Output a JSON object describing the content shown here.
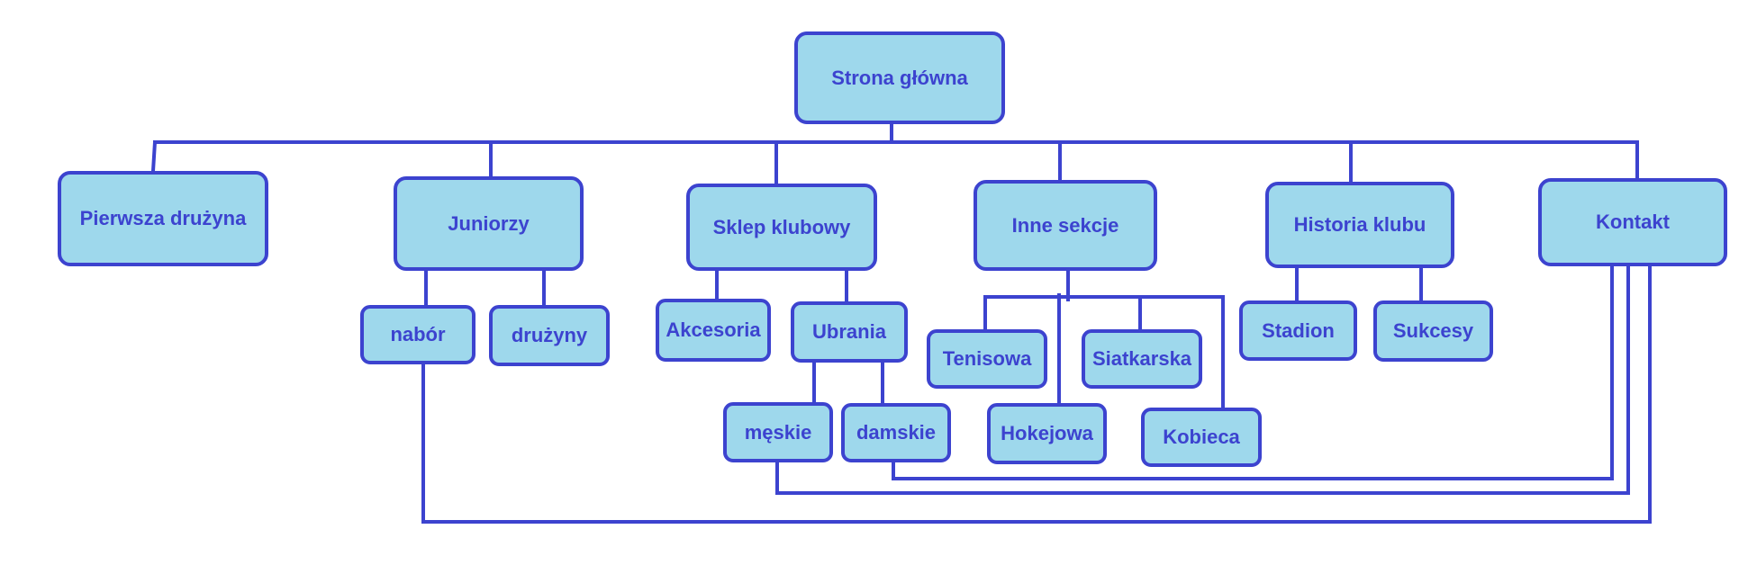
{
  "colors": {
    "line": "#3c43cf",
    "fill": "#9ed8ec",
    "text": "#3c43cf"
  },
  "nodes": {
    "root": "Strona główna",
    "pierwsza": "Pierwsza drużyna",
    "juniorzy": "Juniorzy",
    "sklep": "Sklep klubowy",
    "inne": "Inne sekcje",
    "historia": "Historia klubu",
    "kontakt": "Kontakt",
    "nabor": "nabór",
    "druzyny": "drużyny",
    "akcesoria": "Akcesoria",
    "ubrania": "Ubrania",
    "meskie": "męskie",
    "damskie": "damskie",
    "tenisowa": "Tenisowa",
    "siatkarska": "Siatkarska",
    "hokejowa": "Hokejowa",
    "kobieca": "Kobieca",
    "stadion": "Stadion",
    "sukcesy": "Sukcesy"
  },
  "edges": [
    [
      "root",
      "pierwsza"
    ],
    [
      "root",
      "juniorzy"
    ],
    [
      "root",
      "sklep"
    ],
    [
      "root",
      "inne"
    ],
    [
      "root",
      "historia"
    ],
    [
      "root",
      "kontakt"
    ],
    [
      "juniorzy",
      "nabor"
    ],
    [
      "juniorzy",
      "druzyny"
    ],
    [
      "sklep",
      "akcesoria"
    ],
    [
      "sklep",
      "ubrania"
    ],
    [
      "ubrania",
      "meskie"
    ],
    [
      "ubrania",
      "damskie"
    ],
    [
      "inne",
      "tenisowa"
    ],
    [
      "inne",
      "siatkarska"
    ],
    [
      "inne",
      "hokejowa"
    ],
    [
      "inne",
      "kobieca"
    ],
    [
      "historia",
      "stadion"
    ],
    [
      "historia",
      "sukcesy"
    ],
    [
      "kontakt",
      "damskie"
    ],
    [
      "kontakt",
      "meskie"
    ],
    [
      "kontakt",
      "nabor"
    ]
  ]
}
